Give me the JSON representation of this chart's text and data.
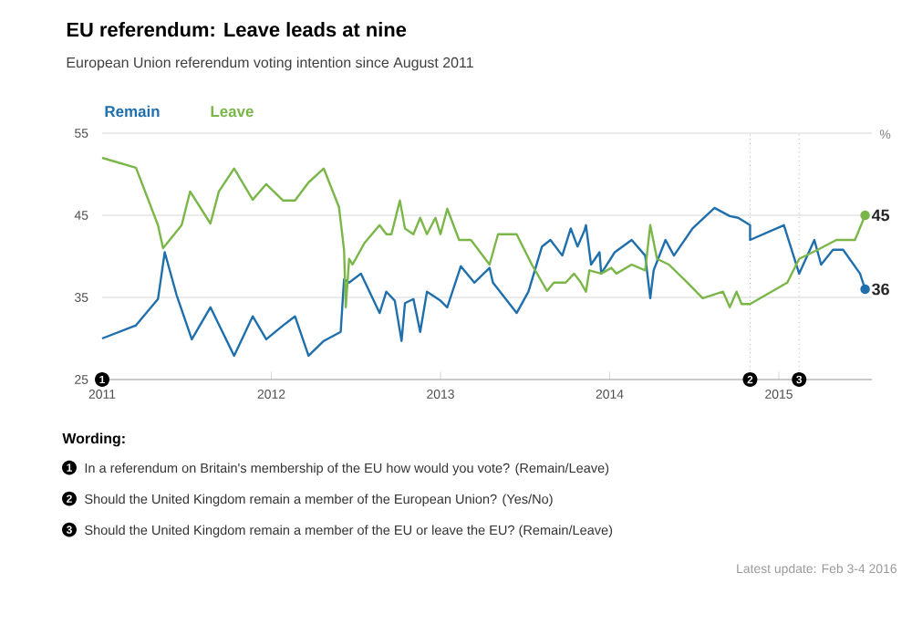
{
  "chart_data": {
    "type": "line",
    "title": "EU referendum: Leave leads at nine",
    "subtitle": "European Union referendum voting intention since August 2011",
    "ylabel": "%",
    "xlim": [
      2011,
      2015.55
    ],
    "xticks": [
      2011,
      2012,
      2013,
      2014,
      2015
    ],
    "ylim": [
      25,
      55
    ],
    "yticks": [
      25,
      35,
      45,
      55
    ],
    "grid": "y",
    "legend": "top left",
    "line_style": "solid",
    "series": [
      {
        "name": "Remain",
        "color": "#1f6fad",
        "x": [
          2011,
          2011.2,
          2011.33,
          2011.37,
          2011.44,
          2011.53,
          2011.64,
          2011.78,
          2011.89,
          2011.97,
          2012.07,
          2012.14,
          2012.22,
          2012.31,
          2012.41,
          2012.43,
          2012.46,
          2012.53,
          2012.64,
          2012.68,
          2012.73,
          2012.77,
          2012.79,
          2012.84,
          2012.88,
          2012.92,
          2013.0,
          2013.04,
          2013.12,
          2013.2,
          2013.29,
          2013.31,
          2013.45,
          2013.52,
          2013.6,
          2013.65,
          2013.72,
          2013.77,
          2013.81,
          2013.85,
          2013.86,
          2013.89,
          2013.94,
          2013.95,
          2014.03,
          2014.13,
          2014.21,
          2014.24,
          2014.26,
          2014.33,
          2014.38,
          2014.49,
          2014.62,
          2014.71,
          2014.76,
          2014.83,
          2014.83,
          2015.03,
          2015.12,
          2015.21,
          2015.25,
          2015.32,
          2015.38,
          2015.48,
          2015.51
        ],
        "values": [
          30,
          31.6,
          34.8,
          40.5,
          35.3,
          29.9,
          33.8,
          27.9,
          32.7,
          29.9,
          31.6,
          32.7,
          27.9,
          29.7,
          30.8,
          37.2,
          36.8,
          37.9,
          33.1,
          35.7,
          34.6,
          29.7,
          34.3,
          34.8,
          30.8,
          35.7,
          34.6,
          33.8,
          38.8,
          36.8,
          38.6,
          36.8,
          33.1,
          35.7,
          41.2,
          42,
          40.1,
          43.4,
          41.2,
          43.1,
          43.8,
          39,
          40.5,
          37.9,
          40.5,
          42,
          40.1,
          34.9,
          38.3,
          42,
          40.1,
          43.4,
          45.9,
          44.9,
          44.7,
          43.8,
          42,
          43.8,
          37.9,
          42,
          39,
          40.8,
          40.8,
          37.9,
          36
        ],
        "value_labels": [
          null,
          null,
          null,
          null,
          null,
          null,
          null,
          null,
          null,
          null,
          null,
          null,
          null,
          null,
          null,
          null,
          null,
          null,
          null,
          null,
          null,
          null,
          null,
          null,
          null,
          null,
          null,
          null,
          null,
          null,
          null,
          null,
          null,
          null,
          null,
          null,
          null,
          null,
          null,
          null,
          null,
          null,
          null,
          null,
          null,
          null,
          null,
          null,
          null,
          null,
          null,
          null,
          null,
          null,
          null,
          null,
          null,
          null,
          null,
          null,
          null,
          null,
          null,
          null,
          "36"
        ]
      },
      {
        "name": "Leave",
        "color": "#7ab648",
        "x": [
          2011.0,
          2011.2,
          2011.33,
          2011.36,
          2011.47,
          2011.52,
          2011.64,
          2011.69,
          2011.78,
          2011.89,
          2011.97,
          2012.07,
          2012.14,
          2012.22,
          2012.31,
          2012.4,
          2012.43,
          2012.44,
          2012.46,
          2012.48,
          2012.55,
          2012.64,
          2012.68,
          2012.71,
          2012.76,
          2012.79,
          2012.84,
          2012.88,
          2012.92,
          2012.97,
          2013.0,
          2013.04,
          2013.11,
          2013.18,
          2013.29,
          2013.34,
          2013.45,
          2013.54,
          2013.63,
          2013.67,
          2013.74,
          2013.79,
          2013.83,
          2013.86,
          2013.88,
          2013.95,
          2014.01,
          2014.04,
          2014.13,
          2014.21,
          2014.24,
          2014.28,
          2014.35,
          2014.46,
          2014.55,
          2014.67,
          2014.71,
          2014.75,
          2014.78,
          2014.83,
          2015.05,
          2015.12,
          2015.23,
          2015.34,
          2015.45,
          2015.51
        ],
        "values": [
          52,
          50.8,
          43.8,
          41,
          43.8,
          47.9,
          44,
          47.9,
          50.7,
          46.9,
          48.8,
          46.8,
          46.8,
          49,
          50.7,
          46,
          40.8,
          33.8,
          39.7,
          39,
          41.6,
          43.8,
          42.7,
          42.7,
          46.8,
          43.4,
          42.7,
          44.7,
          42.7,
          44.7,
          42.7,
          45.8,
          42,
          42,
          39,
          42.7,
          42.7,
          39,
          35.8,
          36.8,
          36.8,
          37.9,
          36.8,
          35.7,
          38.3,
          37.9,
          38.6,
          37.9,
          39,
          38.3,
          43.8,
          39.7,
          39,
          36.8,
          34.9,
          35.7,
          33.8,
          35.7,
          34.2,
          34.2,
          36.8,
          39.7,
          40.8,
          42,
          42,
          45
        ],
        "value_labels": [
          null,
          null,
          null,
          null,
          null,
          null,
          null,
          null,
          null,
          null,
          null,
          null,
          null,
          null,
          null,
          null,
          null,
          null,
          null,
          null,
          null,
          null,
          null,
          null,
          null,
          null,
          null,
          null,
          null,
          null,
          null,
          null,
          null,
          null,
          null,
          null,
          null,
          null,
          null,
          null,
          null,
          null,
          null,
          null,
          null,
          null,
          null,
          null,
          null,
          null,
          null,
          null,
          null,
          null,
          null,
          null,
          null,
          null,
          null,
          null,
          null,
          null,
          null,
          null,
          null,
          "45"
        ]
      }
    ],
    "ref_lines": [
      {
        "axis": "x",
        "value": 2014.83,
        "color": "#888888",
        "line_style": "dotted"
      },
      {
        "axis": "x",
        "value": 2015.12,
        "color": "#888888",
        "line_style": "dotted"
      }
    ],
    "annotations": [
      {
        "text": "1",
        "x": 2011,
        "y": 25
      },
      {
        "text": "2",
        "x": 2014.83,
        "y": 25
      },
      {
        "text": "3",
        "x": 2015.12,
        "y": 25
      },
      "Wording:",
      "In a referendum on Britain's membership of the EU how would you vote? (Remain/Leave)",
      "Should the United Kingdom remain a member of the European Union? (Yes/No)",
      "Should the United Kingdom remain a member of the EU or leave the EU? (Remain/Leave)",
      "Latest update: Feb 3-4 2016"
    ]
  }
}
